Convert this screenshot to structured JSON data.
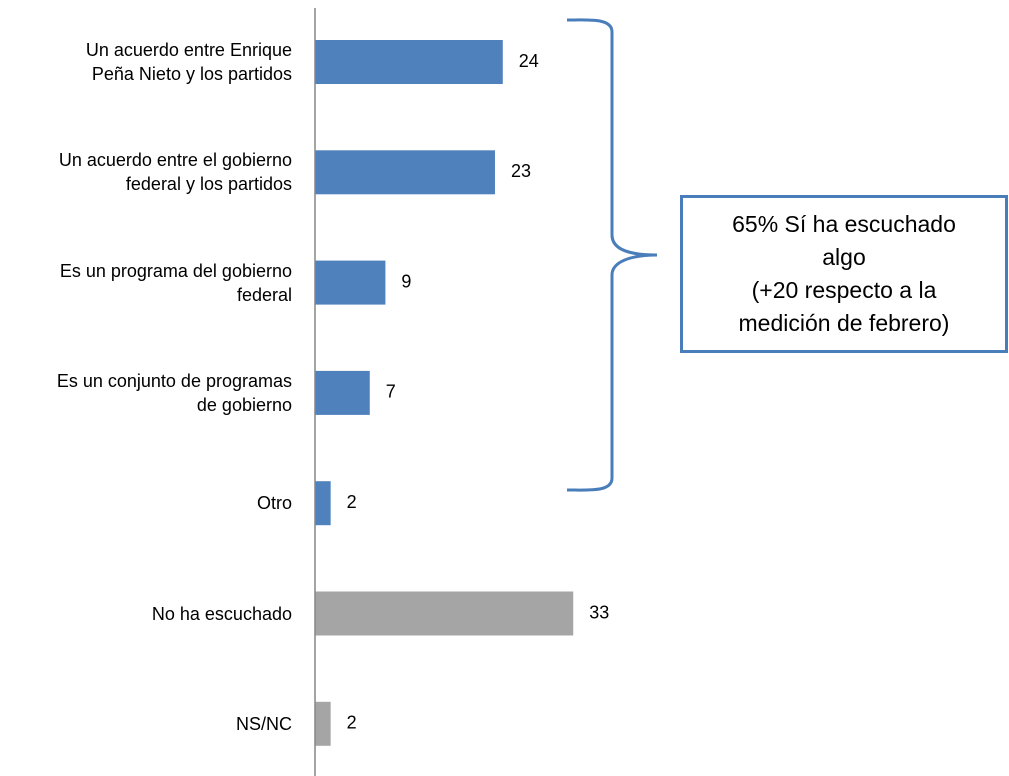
{
  "chart_data": {
    "type": "barh",
    "categories": [
      "Un acuerdo entre Enrique Peña Nieto y los partidos",
      "Un acuerdo entre el gobierno federal y los partidos",
      "Es un programa del gobierno federal",
      "Es un conjunto de programas de gobierno",
      "Otro",
      "No ha escuchado",
      "NS/NC"
    ],
    "values": [
      24,
      23,
      9,
      7,
      2,
      33,
      2
    ],
    "colors": [
      "#4f81bd",
      "#4f81bd",
      "#4f81bd",
      "#4f81bd",
      "#4f81bd",
      "#a5a5a5",
      "#a5a5a5"
    ],
    "xlim": [
      0,
      40
    ],
    "annotation": [
      "65% Sí ha escuchado algo",
      "(+20 respecto a la medición de febrero)"
    ]
  }
}
